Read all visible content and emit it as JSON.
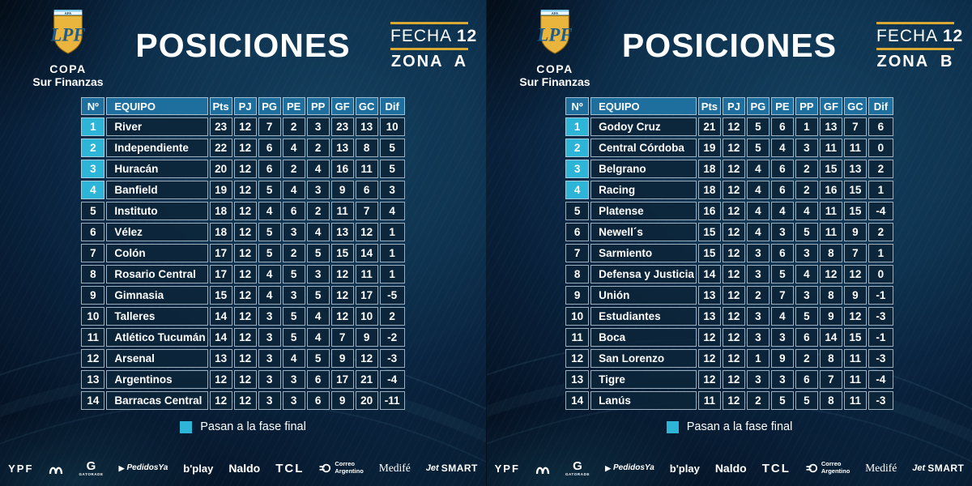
{
  "title": "POSICIONES",
  "fecha_label": "FECHA",
  "fecha_number": "12",
  "legend_label": "Pasan a la fase final",
  "qualify_count": 4,
  "logo": {
    "afa": "AFA",
    "monogram": "LPF",
    "copa": "COPA",
    "sub": "Sur Finanzas"
  },
  "colors": {
    "accent_cyan": "#2db5d8",
    "header_blue": "#1e6f9e",
    "gold": "#d9a733",
    "row_bg": "#0c2539",
    "background_navy": "#0a2440"
  },
  "chart_data": [
    {
      "type": "table",
      "title": "POSICIONES",
      "zone_label": "ZONA A",
      "fecha": "FECHA 12",
      "columns": [
        "Nº",
        "EQUIPO",
        "Pts",
        "PJ",
        "PG",
        "PE",
        "PP",
        "GF",
        "GC",
        "Dif"
      ],
      "rows": [
        [
          1,
          "River",
          23,
          12,
          7,
          2,
          3,
          23,
          13,
          10
        ],
        [
          2,
          "Independiente",
          22,
          12,
          6,
          4,
          2,
          13,
          8,
          5
        ],
        [
          3,
          "Huracán",
          20,
          12,
          6,
          2,
          4,
          16,
          11,
          5
        ],
        [
          4,
          "Banfield",
          19,
          12,
          5,
          4,
          3,
          9,
          6,
          3
        ],
        [
          5,
          "Instituto",
          18,
          12,
          4,
          6,
          2,
          11,
          7,
          4
        ],
        [
          6,
          "Vélez",
          18,
          12,
          5,
          3,
          4,
          13,
          12,
          1
        ],
        [
          7,
          "Colón",
          17,
          12,
          5,
          2,
          5,
          15,
          14,
          1
        ],
        [
          8,
          "Rosario Central",
          17,
          12,
          4,
          5,
          3,
          12,
          11,
          1
        ],
        [
          9,
          "Gimnasia",
          15,
          12,
          4,
          3,
          5,
          12,
          17,
          -5
        ],
        [
          10,
          "Talleres",
          14,
          12,
          3,
          5,
          4,
          12,
          10,
          2
        ],
        [
          11,
          "Atlético Tucumán",
          14,
          12,
          3,
          5,
          4,
          7,
          9,
          -2
        ],
        [
          12,
          "Arsenal",
          13,
          12,
          3,
          4,
          5,
          9,
          12,
          -3
        ],
        [
          13,
          "Argentinos",
          12,
          12,
          3,
          3,
          6,
          17,
          21,
          -4
        ],
        [
          14,
          "Barracas Central",
          12,
          12,
          3,
          3,
          6,
          9,
          20,
          -11
        ]
      ]
    },
    {
      "type": "table",
      "title": "POSICIONES",
      "zone_label": "ZONA B",
      "fecha": "FECHA 12",
      "columns": [
        "Nº",
        "EQUIPO",
        "Pts",
        "PJ",
        "PG",
        "PE",
        "PP",
        "GF",
        "GC",
        "Dif"
      ],
      "rows": [
        [
          1,
          "Godoy Cruz",
          21,
          12,
          5,
          6,
          1,
          13,
          7,
          6
        ],
        [
          2,
          "Central Córdoba",
          19,
          12,
          5,
          4,
          3,
          11,
          11,
          0
        ],
        [
          3,
          "Belgrano",
          18,
          12,
          4,
          6,
          2,
          15,
          13,
          2
        ],
        [
          4,
          "Racing",
          18,
          12,
          4,
          6,
          2,
          16,
          15,
          1
        ],
        [
          5,
          "Platense",
          16,
          12,
          4,
          4,
          4,
          11,
          15,
          -4
        ],
        [
          6,
          "Newell´s",
          15,
          12,
          4,
          3,
          5,
          11,
          9,
          2
        ],
        [
          7,
          "Sarmiento",
          15,
          12,
          3,
          6,
          3,
          8,
          7,
          1
        ],
        [
          8,
          "Defensa y Justicia",
          14,
          12,
          3,
          5,
          4,
          12,
          12,
          0
        ],
        [
          9,
          "Unión",
          13,
          12,
          2,
          7,
          3,
          8,
          9,
          -1
        ],
        [
          10,
          "Estudiantes",
          13,
          12,
          3,
          4,
          5,
          9,
          12,
          -3
        ],
        [
          11,
          "Boca",
          12,
          12,
          3,
          3,
          6,
          14,
          15,
          -1
        ],
        [
          12,
          "San Lorenzo",
          12,
          12,
          1,
          9,
          2,
          8,
          11,
          -3
        ],
        [
          13,
          "Tigre",
          12,
          12,
          3,
          3,
          6,
          7,
          11,
          -4
        ],
        [
          14,
          "Lanús",
          11,
          12,
          2,
          5,
          5,
          8,
          11,
          -3
        ]
      ]
    }
  ],
  "sponsors": {
    "ypf": "YPF",
    "gatorade_g": "G",
    "gatorade_sub": "GATORADE",
    "pedidosya": "PedidosYa",
    "bplay": "b'play",
    "naldo": "Naldo",
    "tcl": "TCL",
    "correo_line1": "Correo",
    "correo_line2": "Argentino",
    "medife": "Medifé",
    "jetsmart_jet": "Jet",
    "jetsmart_smart": "SMART"
  }
}
